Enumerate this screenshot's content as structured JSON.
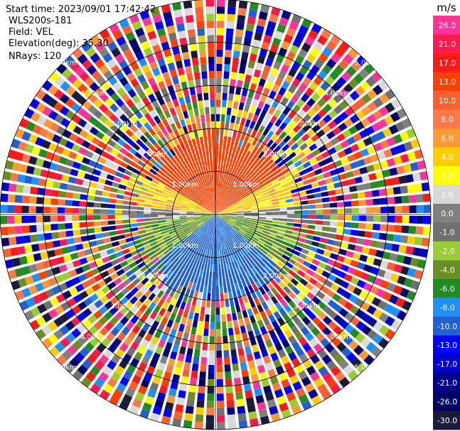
{
  "info": {
    "start_time": "Start time: 2023/09/01 17:42:42",
    "instrument": "WLS200s-181",
    "field": "Field: VEL",
    "elevation": "Elevation(deg): 35.30",
    "nrays": "NRays: 120"
  },
  "chart_data": {
    "type": "heatmap",
    "projection": "polar-ppi",
    "n_rays": 120,
    "range_rings_km": [
      1.0,
      2.0,
      3.0,
      4.0,
      5.0
    ],
    "ring_labels": [
      "1.00km",
      "2.00km",
      "3.00km",
      "4.00km",
      "5.00km"
    ],
    "max_range_km": 5.0,
    "valid_data_range_km": 2.0,
    "colorbar": {
      "unit": "m/s",
      "ticks": [
        "26.0",
        "21.0",
        "17.0",
        "13.0",
        "10.0",
        "8.0",
        "6.0",
        "4.0",
        "2.0",
        "1.0",
        "0.0",
        "-1.0",
        "-2.0",
        "-4.0",
        "-6.0",
        "-8.0",
        "-10.0",
        "-13.0",
        "-17.0",
        "-21.0",
        "-26.0",
        "-30.0"
      ],
      "colors": [
        "#ff3399",
        "#ff1a4d",
        "#ff1a1a",
        "#ff4000",
        "#ff6030",
        "#ff7a4a",
        "#ff9933",
        "#ffcc00",
        "#ffff00",
        "#d9d9d9",
        "#808080",
        "#707070",
        "#9acd32",
        "#6b8e23",
        "#228b22",
        "#1e90ff",
        "#2060d0",
        "#0000ff",
        "#0000cd",
        "#00008b",
        "#000066",
        "#1a1a3a"
      ]
    },
    "description_sectors": [
      {
        "from_deg": 300,
        "to_deg": 60,
        "value": 13.0
      },
      {
        "from_deg": 60,
        "to_deg": 85,
        "value": 4.0
      },
      {
        "from_deg": 85,
        "to_deg": 95,
        "value": 0.0
      },
      {
        "from_deg": 95,
        "to_deg": 130,
        "value": -4.0
      },
      {
        "from_deg": 130,
        "to_deg": 230,
        "value": -10.0
      },
      {
        "from_deg": 230,
        "to_deg": 265,
        "value": -4.0
      },
      {
        "from_deg": 265,
        "to_deg": 275,
        "value": 0.0
      },
      {
        "from_deg": 275,
        "to_deg": 300,
        "value": 4.0
      }
    ]
  }
}
